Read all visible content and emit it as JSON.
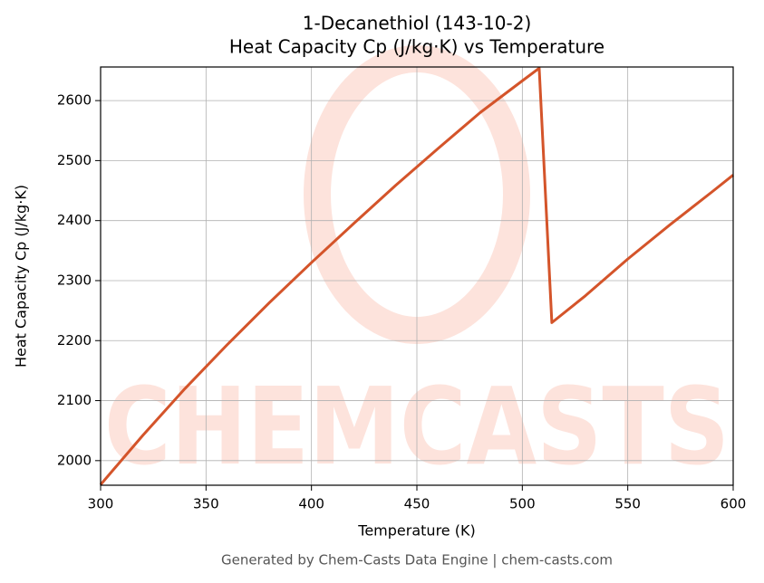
{
  "chart_data": {
    "type": "line",
    "title": "1-Decanethiol (143-10-2)",
    "subtitle": "Heat Capacity Cp (J/kg·K) vs Temperature",
    "x_label": "Temperature (K)",
    "y_label": "Heat Capacity Cp (J/kg·K)",
    "footer": "Generated by Chem-Casts Data Engine | chem-casts.com",
    "watermark": "CHEMCASTS",
    "x": [
      300,
      320,
      340,
      360,
      380,
      400,
      420,
      440,
      460,
      480,
      500,
      508,
      514,
      530,
      550,
      570,
      590,
      600
    ],
    "series": [
      {
        "name": "Cp",
        "color": "#d4542a",
        "values": [
          1960,
          2042,
          2120,
          2193,
          2263,
          2330,
          2395,
          2459,
          2520,
          2580,
          2633,
          2654,
          2230,
          2275,
          2336,
          2393,
          2448,
          2476
        ]
      }
    ],
    "xlim": [
      300,
      600
    ],
    "xticks": [
      300,
      350,
      400,
      450,
      500,
      550,
      600
    ],
    "ylim": [
      1959,
      2656
    ],
    "yticks": [
      2000,
      2100,
      2200,
      2300,
      2400,
      2500,
      2600
    ],
    "grid": true
  }
}
